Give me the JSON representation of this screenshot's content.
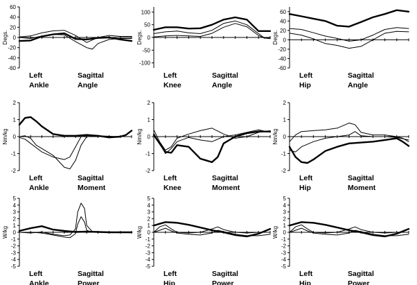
{
  "figure": {
    "background": "#ffffff",
    "line_color": "#000000"
  },
  "chart_data": [
    {
      "type": "line",
      "ylabel": "Degs.",
      "ylim": [
        -60,
        60
      ],
      "yticks": [
        "60",
        "40",
        "20",
        "0",
        "-20",
        "-40",
        "-60"
      ],
      "caption": {
        "left": [
          "Left",
          "Ankle"
        ],
        "right": [
          "Sagittal",
          "Angle"
        ]
      },
      "series": [
        {
          "style": "bold",
          "x": [
            0,
            10,
            20,
            30,
            40,
            50,
            60,
            70,
            80,
            90,
            100
          ],
          "values": [
            -7,
            -6,
            2,
            6,
            8,
            -3,
            -4,
            -1,
            0,
            -4,
            -7
          ]
        },
        {
          "style": "thin",
          "x": [
            0,
            10,
            20,
            30,
            40,
            50,
            60,
            65,
            70,
            80,
            90,
            100
          ],
          "values": [
            0,
            -2,
            3,
            6,
            5,
            -8,
            -20,
            -23,
            -12,
            -4,
            -2,
            -2
          ]
        },
        {
          "style": "thin",
          "x": [
            0,
            10,
            20,
            30,
            40,
            50,
            60,
            70,
            80,
            90,
            100
          ],
          "values": [
            1,
            3,
            9,
            13,
            14,
            4,
            -10,
            0,
            4,
            2,
            2
          ]
        }
      ]
    },
    {
      "type": "line",
      "ylabel": "Degs.",
      "ylim": [
        -120,
        120
      ],
      "yticks": [
        "100",
        "50",
        "0",
        "-50",
        "-100"
      ],
      "caption": {
        "left": [
          "Left",
          "Knee"
        ],
        "right": [
          "Sagittal",
          "Angle"
        ]
      },
      "series": [
        {
          "style": "bold",
          "x": [
            0,
            10,
            20,
            30,
            40,
            50,
            60,
            70,
            80,
            90,
            100
          ],
          "values": [
            30,
            40,
            40,
            35,
            36,
            50,
            70,
            79,
            70,
            25,
            25
          ]
        },
        {
          "style": "thin",
          "x": [
            0,
            10,
            20,
            30,
            40,
            50,
            60,
            70,
            80,
            90,
            95,
            100
          ],
          "values": [
            15,
            22,
            25,
            18,
            15,
            28,
            55,
            65,
            50,
            15,
            -2,
            -5
          ]
        },
        {
          "style": "thin",
          "x": [
            0,
            10,
            20,
            30,
            40,
            50,
            60,
            70,
            80,
            90,
            95,
            100
          ],
          "values": [
            2,
            6,
            8,
            6,
            4,
            16,
            40,
            55,
            42,
            8,
            -3,
            -2
          ]
        }
      ]
    },
    {
      "type": "line",
      "ylabel": "Degs.",
      "ylim": [
        -60,
        70
      ],
      "yticks": [
        "60",
        "40",
        "20",
        "0",
        "-20",
        "-40",
        "-60"
      ],
      "caption": {
        "left": [
          "Left",
          "Hip"
        ],
        "right": [
          "Sagittal",
          "Angle"
        ]
      },
      "series": [
        {
          "style": "bold",
          "x": [
            0,
            10,
            20,
            30,
            40,
            50,
            60,
            70,
            80,
            90,
            100
          ],
          "values": [
            55,
            50,
            45,
            40,
            30,
            28,
            38,
            48,
            55,
            63,
            60
          ]
        },
        {
          "style": "thin",
          "x": [
            0,
            10,
            20,
            30,
            40,
            50,
            60,
            70,
            80,
            90,
            100
          ],
          "values": [
            24,
            22,
            15,
            8,
            3,
            -3,
            0,
            10,
            22,
            26,
            24
          ]
        },
        {
          "style": "thin",
          "x": [
            0,
            10,
            20,
            30,
            40,
            50,
            60,
            70,
            80,
            90,
            100
          ],
          "values": [
            14,
            10,
            2,
            -8,
            -12,
            -18,
            -14,
            0,
            14,
            18,
            17
          ]
        }
      ]
    },
    {
      "type": "line",
      "ylabel": "Nm/kg",
      "ylim": [
        -2,
        2
      ],
      "yticks": [
        "2",
        "1",
        "0",
        "-1",
        "-2"
      ],
      "caption": {
        "left": [
          "Left",
          "Ankle"
        ],
        "right": [
          "Sagittal",
          "Moment"
        ]
      },
      "series": [
        {
          "style": "bold",
          "x": [
            0,
            5,
            10,
            15,
            20,
            30,
            40,
            50,
            60,
            70,
            80,
            90,
            95,
            100
          ],
          "values": [
            0.7,
            1.1,
            1.15,
            0.9,
            0.6,
            0.15,
            0.05,
            0.05,
            0.1,
            0.05,
            -0.05,
            0.0,
            0.1,
            0.35
          ]
        },
        {
          "style": "thin",
          "x": [
            0,
            5,
            10,
            20,
            30,
            40,
            45,
            50,
            55,
            60,
            70,
            80,
            90,
            100
          ],
          "values": [
            -0.05,
            -0.15,
            -0.4,
            -0.9,
            -1.2,
            -1.35,
            -1.2,
            -0.6,
            0.0,
            0.05,
            0.05,
            0.02,
            0.0,
            0.0
          ]
        },
        {
          "style": "thin",
          "x": [
            0,
            5,
            10,
            15,
            20,
            30,
            40,
            45,
            50,
            55,
            60,
            70,
            80,
            100
          ],
          "values": [
            0.0,
            0.05,
            -0.1,
            -0.5,
            -0.7,
            -1.1,
            -1.8,
            -1.9,
            -1.4,
            -0.5,
            0.0,
            0.05,
            0.0,
            0.0
          ]
        }
      ]
    },
    {
      "type": "line",
      "ylabel": "Nm/kg",
      "ylim": [
        -2,
        2
      ],
      "yticks": [
        "2",
        "1",
        "0",
        "-1",
        "-2"
      ],
      "caption": {
        "left": [
          "Left",
          "Knee"
        ],
        "right": [
          "Sagittal",
          "Moment"
        ]
      },
      "series": [
        {
          "style": "bold",
          "x": [
            0,
            5,
            10,
            15,
            20,
            30,
            40,
            50,
            55,
            60,
            70,
            80,
            90,
            100
          ],
          "values": [
            0.1,
            -0.4,
            -0.9,
            -0.95,
            -0.5,
            -0.6,
            -1.3,
            -1.5,
            -1.2,
            -0.4,
            0.0,
            0.2,
            0.3,
            0.3
          ]
        },
        {
          "style": "thin",
          "x": [
            0,
            5,
            10,
            15,
            20,
            30,
            40,
            50,
            60,
            70,
            80,
            90,
            100
          ],
          "values": [
            0.4,
            -0.3,
            -0.8,
            -0.6,
            -0.1,
            0.15,
            0.35,
            0.5,
            0.15,
            -0.1,
            0.0,
            0.25,
            0.35
          ]
        },
        {
          "style": "thin",
          "x": [
            0,
            5,
            10,
            15,
            20,
            30,
            40,
            50,
            60,
            70,
            80,
            90,
            100
          ],
          "values": [
            0.2,
            -0.4,
            -1.0,
            -0.7,
            -0.3,
            -0.05,
            -0.2,
            -0.3,
            0.0,
            0.1,
            0.25,
            0.4,
            0.25
          ]
        }
      ]
    },
    {
      "type": "line",
      "ylabel": "Nm/kg",
      "ylim": [
        -2,
        2
      ],
      "yticks": [
        "2",
        "1",
        "0",
        "-1",
        "-2"
      ],
      "caption": {
        "left": [
          "Left",
          "Hip"
        ],
        "right": [
          "Sagittal",
          "Moment"
        ]
      },
      "series": [
        {
          "style": "bold",
          "x": [
            0,
            5,
            10,
            15,
            20,
            30,
            40,
            50,
            60,
            70,
            80,
            90,
            95,
            100
          ],
          "values": [
            -0.6,
            -1.2,
            -1.5,
            -1.55,
            -1.35,
            -0.85,
            -0.6,
            -0.4,
            -0.35,
            -0.3,
            -0.2,
            -0.1,
            -0.3,
            -0.55
          ]
        },
        {
          "style": "thin",
          "x": [
            0,
            5,
            10,
            20,
            30,
            40,
            50,
            55,
            60,
            70,
            80,
            90,
            95,
            100
          ],
          "values": [
            -0.3,
            0.1,
            0.3,
            0.35,
            0.4,
            0.5,
            0.8,
            0.7,
            0.25,
            0.1,
            0.1,
            0.0,
            -0.1,
            -0.3
          ]
        },
        {
          "style": "thin",
          "x": [
            0,
            5,
            10,
            20,
            30,
            40,
            50,
            55,
            60,
            70,
            80,
            90,
            100
          ],
          "values": [
            -0.8,
            -0.9,
            -0.6,
            -0.3,
            -0.1,
            0.0,
            0.1,
            0.3,
            0.05,
            0.0,
            0.0,
            -0.05,
            -0.2
          ]
        }
      ]
    },
    {
      "type": "line",
      "ylabel": "W/kg",
      "ylim": [
        -5,
        5
      ],
      "yticks": [
        "5",
        "4",
        "3",
        "2",
        "1",
        "0",
        "-1",
        "-2",
        "-3",
        "-4",
        "-5"
      ],
      "caption": {
        "left": [
          "Left",
          "Ankle"
        ],
        "right": [
          "Sagittal",
          "Power"
        ]
      },
      "series": [
        {
          "style": "bold",
          "x": [
            0,
            10,
            20,
            30,
            40,
            50,
            60,
            70,
            80,
            90,
            100
          ],
          "values": [
            0.2,
            0.6,
            0.9,
            0.4,
            0.2,
            0.05,
            0.1,
            0.05,
            0.0,
            0.0,
            0.0
          ]
        },
        {
          "style": "thin",
          "x": [
            0,
            10,
            20,
            30,
            40,
            45,
            50,
            52,
            55,
            58,
            60,
            65,
            70,
            80,
            90,
            100
          ],
          "values": [
            0.0,
            -0.1,
            0.05,
            -0.3,
            -0.5,
            -0.4,
            0.5,
            3.0,
            4.3,
            3.5,
            1.0,
            0.1,
            0.0,
            0.0,
            0.0,
            0.0
          ]
        },
        {
          "style": "thin",
          "x": [
            0,
            10,
            20,
            30,
            40,
            45,
            50,
            52,
            55,
            58,
            60,
            65,
            70,
            80,
            100
          ],
          "values": [
            0.0,
            0.0,
            -0.1,
            -0.4,
            -0.7,
            -0.8,
            -0.2,
            1.2,
            2.3,
            1.5,
            0.3,
            0.0,
            0.0,
            0.0,
            0.0
          ]
        }
      ]
    },
    {
      "type": "line",
      "ylabel": "W/kg",
      "ylim": [
        -5,
        5
      ],
      "yticks": [
        "5",
        "4",
        "3",
        "2",
        "1",
        "0",
        "-1",
        "-2",
        "-3",
        "-4",
        "-5"
      ],
      "caption": {
        "left": [
          "Left",
          "Hip"
        ],
        "right": [
          "Sagittal",
          "Power"
        ]
      },
      "series": [
        {
          "style": "bold",
          "x": [
            0,
            10,
            20,
            30,
            40,
            50,
            60,
            70,
            80,
            90,
            100
          ],
          "values": [
            1.0,
            1.5,
            1.4,
            1.1,
            0.7,
            0.3,
            0.0,
            -0.4,
            -0.6,
            -0.2,
            0.5
          ]
        },
        {
          "style": "thin",
          "x": [
            0,
            5,
            10,
            15,
            20,
            30,
            40,
            50,
            55,
            60,
            70,
            80,
            90,
            100
          ],
          "values": [
            0.0,
            0.8,
            1.1,
            0.5,
            0.0,
            -0.1,
            0.0,
            0.5,
            0.8,
            0.4,
            0.0,
            -0.1,
            0.0,
            0.0
          ]
        },
        {
          "style": "thin",
          "x": [
            0,
            5,
            10,
            15,
            20,
            30,
            40,
            50,
            55,
            60,
            70,
            80,
            90,
            100
          ],
          "values": [
            0.0,
            0.3,
            0.6,
            0.2,
            -0.1,
            -0.3,
            -0.4,
            -0.1,
            0.3,
            0.1,
            -0.3,
            -0.5,
            -0.5,
            -0.3
          ]
        }
      ]
    },
    {
      "type": "line",
      "ylabel": "W/kg",
      "ylim": [
        -5,
        5
      ],
      "yticks": [
        "5",
        "4",
        "3",
        "2",
        "1",
        "0",
        "-1",
        "-2",
        "-3",
        "-4",
        "-5"
      ],
      "caption": {
        "left": [
          "Left",
          "Hip"
        ],
        "right": [
          "Sagittal",
          "Power"
        ]
      },
      "series": [
        {
          "style": "bold",
          "x": [
            0,
            10,
            20,
            30,
            40,
            50,
            60,
            70,
            80,
            90,
            100
          ],
          "values": [
            1.0,
            1.5,
            1.4,
            1.1,
            0.7,
            0.3,
            0.0,
            -0.4,
            -0.6,
            -0.2,
            0.5
          ]
        },
        {
          "style": "thin",
          "x": [
            0,
            5,
            10,
            15,
            20,
            30,
            40,
            50,
            55,
            60,
            70,
            80,
            90,
            100
          ],
          "values": [
            0.0,
            0.8,
            1.1,
            0.5,
            0.0,
            -0.1,
            0.0,
            0.5,
            0.8,
            0.4,
            0.0,
            -0.1,
            0.0,
            0.0
          ]
        },
        {
          "style": "thin",
          "x": [
            0,
            5,
            10,
            15,
            20,
            30,
            40,
            50,
            55,
            60,
            70,
            80,
            90,
            100
          ],
          "values": [
            0.0,
            0.3,
            0.6,
            0.2,
            -0.1,
            -0.3,
            -0.4,
            -0.1,
            0.3,
            0.1,
            -0.3,
            -0.5,
            -0.5,
            -0.3
          ]
        }
      ]
    }
  ]
}
